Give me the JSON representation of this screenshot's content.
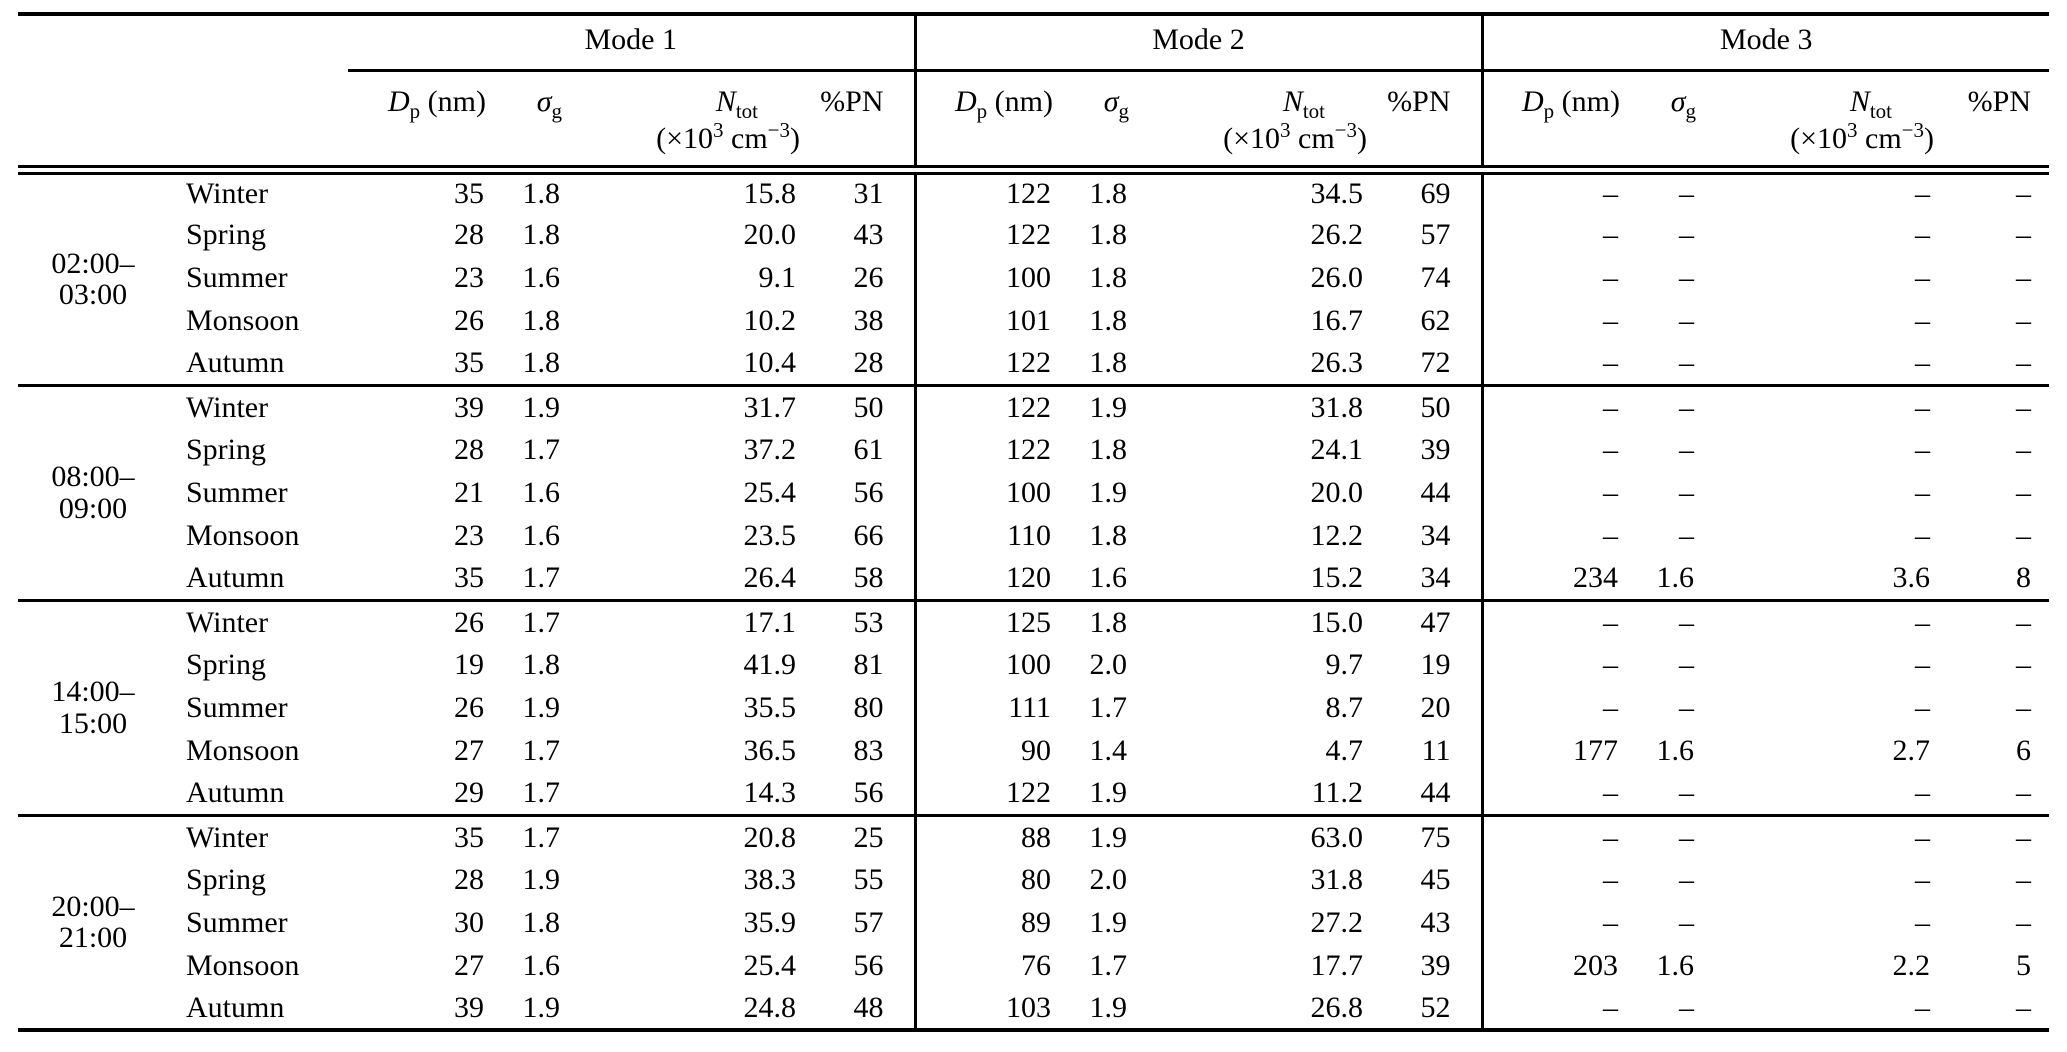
{
  "table": {
    "header": {
      "modes": [
        "Mode 1",
        "Mode 2",
        "Mode 3"
      ],
      "dp": {
        "sym": "D",
        "sub": "p",
        "unit": " (nm)"
      },
      "sigma": {
        "sym": "σ",
        "sub": "g"
      },
      "ntot": {
        "sym": "N",
        "sub": "tot",
        "u1": "(×10",
        "u2": "3",
        "u3": " cm",
        "u4": "−3",
        "u5": ")"
      },
      "pn": "%PN"
    },
    "missing_value": "–",
    "groups": [
      {
        "time": "02:00–03:00",
        "rows": [
          {
            "season": "Winter",
            "mode1": [
              "35",
              "1.8",
              "15.8",
              "31"
            ],
            "mode2": [
              "122",
              "1.8",
              "34.5",
              "69"
            ],
            "mode3": [
              "–",
              "–",
              "–",
              "–"
            ]
          },
          {
            "season": "Spring",
            "mode1": [
              "28",
              "1.8",
              "20.0",
              "43"
            ],
            "mode2": [
              "122",
              "1.8",
              "26.2",
              "57"
            ],
            "mode3": [
              "–",
              "–",
              "–",
              "–"
            ]
          },
          {
            "season": "Summer",
            "mode1": [
              "23",
              "1.6",
              "9.1",
              "26"
            ],
            "mode2": [
              "100",
              "1.8",
              "26.0",
              "74"
            ],
            "mode3": [
              "–",
              "–",
              "–",
              "–"
            ]
          },
          {
            "season": "Monsoon",
            "mode1": [
              "26",
              "1.8",
              "10.2",
              "38"
            ],
            "mode2": [
              "101",
              "1.8",
              "16.7",
              "62"
            ],
            "mode3": [
              "–",
              "–",
              "–",
              "–"
            ]
          },
          {
            "season": "Autumn",
            "mode1": [
              "35",
              "1.8",
              "10.4",
              "28"
            ],
            "mode2": [
              "122",
              "1.8",
              "26.3",
              "72"
            ],
            "mode3": [
              "–",
              "–",
              "–",
              "–"
            ]
          }
        ]
      },
      {
        "time": "08:00–09:00",
        "rows": [
          {
            "season": "Winter",
            "mode1": [
              "39",
              "1.9",
              "31.7",
              "50"
            ],
            "mode2": [
              "122",
              "1.9",
              "31.8",
              "50"
            ],
            "mode3": [
              "–",
              "–",
              "–",
              "–"
            ]
          },
          {
            "season": "Spring",
            "mode1": [
              "28",
              "1.7",
              "37.2",
              "61"
            ],
            "mode2": [
              "122",
              "1.8",
              "24.1",
              "39"
            ],
            "mode3": [
              "–",
              "–",
              "–",
              "–"
            ]
          },
          {
            "season": "Summer",
            "mode1": [
              "21",
              "1.6",
              "25.4",
              "56"
            ],
            "mode2": [
              "100",
              "1.9",
              "20.0",
              "44"
            ],
            "mode3": [
              "–",
              "–",
              "–",
              "–"
            ]
          },
          {
            "season": "Monsoon",
            "mode1": [
              "23",
              "1.6",
              "23.5",
              "66"
            ],
            "mode2": [
              "110",
              "1.8",
              "12.2",
              "34"
            ],
            "mode3": [
              "–",
              "–",
              "–",
              "–"
            ]
          },
          {
            "season": "Autumn",
            "mode1": [
              "35",
              "1.7",
              "26.4",
              "58"
            ],
            "mode2": [
              "120",
              "1.6",
              "15.2",
              "34"
            ],
            "mode3": [
              "234",
              "1.6",
              "3.6",
              "8"
            ]
          }
        ]
      },
      {
        "time": "14:00–15:00",
        "rows": [
          {
            "season": "Winter",
            "mode1": [
              "26",
              "1.7",
              "17.1",
              "53"
            ],
            "mode2": [
              "125",
              "1.8",
              "15.0",
              "47"
            ],
            "mode3": [
              "–",
              "–",
              "–",
              "–"
            ]
          },
          {
            "season": "Spring",
            "mode1": [
              "19",
              "1.8",
              "41.9",
              "81"
            ],
            "mode2": [
              "100",
              "2.0",
              "9.7",
              "19"
            ],
            "mode3": [
              "–",
              "–",
              "–",
              "–"
            ]
          },
          {
            "season": "Summer",
            "mode1": [
              "26",
              "1.9",
              "35.5",
              "80"
            ],
            "mode2": [
              "111",
              "1.7",
              "8.7",
              "20"
            ],
            "mode3": [
              "–",
              "–",
              "–",
              "–"
            ]
          },
          {
            "season": "Monsoon",
            "mode1": [
              "27",
              "1.7",
              "36.5",
              "83"
            ],
            "mode2": [
              "90",
              "1.4",
              "4.7",
              "11"
            ],
            "mode3": [
              "177",
              "1.6",
              "2.7",
              "6"
            ]
          },
          {
            "season": "Autumn",
            "mode1": [
              "29",
              "1.7",
              "14.3",
              "56"
            ],
            "mode2": [
              "122",
              "1.9",
              "11.2",
              "44"
            ],
            "mode3": [
              "–",
              "–",
              "–",
              "–"
            ]
          }
        ]
      },
      {
        "time": "20:00–21:00",
        "rows": [
          {
            "season": "Winter",
            "mode1": [
              "35",
              "1.7",
              "20.8",
              "25"
            ],
            "mode2": [
              "88",
              "1.9",
              "63.0",
              "75"
            ],
            "mode3": [
              "–",
              "–",
              "–",
              "–"
            ]
          },
          {
            "season": "Spring",
            "mode1": [
              "28",
              "1.9",
              "38.3",
              "55"
            ],
            "mode2": [
              "80",
              "2.0",
              "31.8",
              "45"
            ],
            "mode3": [
              "–",
              "–",
              "–",
              "–"
            ]
          },
          {
            "season": "Summer",
            "mode1": [
              "30",
              "1.8",
              "35.9",
              "57"
            ],
            "mode2": [
              "89",
              "1.9",
              "27.2",
              "43"
            ],
            "mode3": [
              "–",
              "–",
              "–",
              "–"
            ]
          },
          {
            "season": "Monsoon",
            "mode1": [
              "27",
              "1.6",
              "25.4",
              "56"
            ],
            "mode2": [
              "76",
              "1.7",
              "17.7",
              "39"
            ],
            "mode3": [
              "203",
              "1.6",
              "2.2",
              "5"
            ]
          },
          {
            "season": "Autumn",
            "mode1": [
              "39",
              "1.9",
              "24.8",
              "48"
            ],
            "mode2": [
              "103",
              "1.9",
              "26.8",
              "52"
            ],
            "mode3": [
              "–",
              "–",
              "–",
              "–"
            ]
          }
        ]
      }
    ]
  }
}
